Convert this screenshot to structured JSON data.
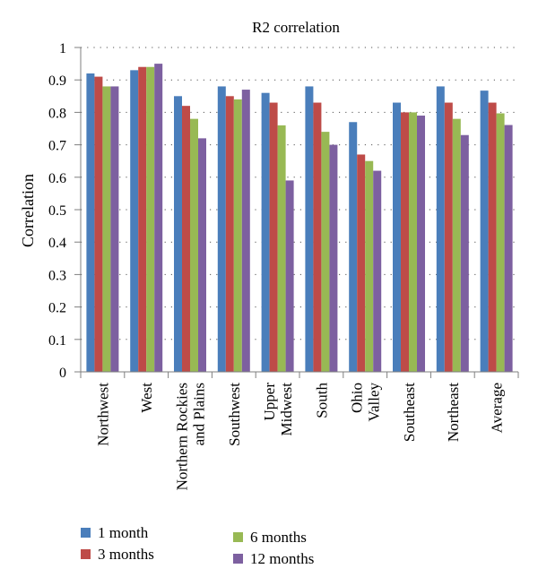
{
  "chart_data": {
    "type": "bar",
    "title": "R2 correlation",
    "ylabel": "Correlation",
    "xlabel": "",
    "ylim": [
      0,
      1
    ],
    "yticks": [
      0,
      0.1,
      0.2,
      0.3,
      0.4,
      0.5,
      0.6,
      0.7,
      0.8,
      0.9,
      1
    ],
    "ytick_labels": [
      "0",
      "0.1",
      "0.2",
      "0.3",
      "0.4",
      "0.5",
      "0.6",
      "0.7",
      "0.8",
      "0.9",
      "1"
    ],
    "grid": "horizontal dotted",
    "legend_position": "bottom",
    "categories": [
      [
        "Northwest"
      ],
      [
        "West"
      ],
      [
        "Northern Rockies",
        "and Plains"
      ],
      [
        "Southwest"
      ],
      [
        "Upper",
        "Midwest"
      ],
      [
        "South"
      ],
      [
        "Ohio",
        "Valley"
      ],
      [
        "Southeast"
      ],
      [
        "Northeast"
      ],
      [
        "Average"
      ]
    ],
    "series": [
      {
        "name": "1 month",
        "color": "#4a7ebb",
        "values": [
          0.92,
          0.93,
          0.85,
          0.88,
          0.86,
          0.88,
          0.77,
          0.83,
          0.88,
          0.867
        ]
      },
      {
        "name": "3 months",
        "color": "#be4b48",
        "values": [
          0.91,
          0.94,
          0.82,
          0.85,
          0.83,
          0.83,
          0.67,
          0.8,
          0.83,
          0.83
        ]
      },
      {
        "name": "6 months",
        "color": "#98b954",
        "values": [
          0.88,
          0.94,
          0.78,
          0.84,
          0.76,
          0.74,
          0.65,
          0.8,
          0.78,
          0.797
        ]
      },
      {
        "name": "12 months",
        "color": "#7d60a0",
        "values": [
          0.88,
          0.95,
          0.72,
          0.87,
          0.59,
          0.7,
          0.62,
          0.79,
          0.73,
          0.761
        ]
      }
    ]
  }
}
